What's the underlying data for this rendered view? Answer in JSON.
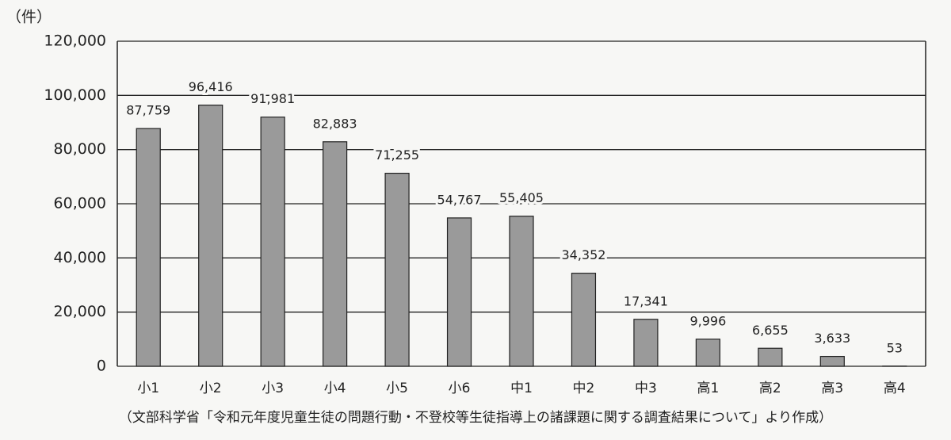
{
  "chart_data": {
    "type": "bar",
    "unit_label": "（件）",
    "source": "（文部科学省「令和元年度児童生徒の問題行動・不登校等生徒指導上の諸課題に関する調査結果について」より作成）",
    "categories": [
      "小1",
      "小2",
      "小3",
      "小4",
      "小5",
      "小6",
      "中1",
      "中2",
      "中3",
      "高1",
      "高2",
      "高3",
      "高4"
    ],
    "values": [
      87759,
      96416,
      91981,
      82883,
      71255,
      54767,
      55405,
      34352,
      17341,
      9996,
      6655,
      3633,
      53
    ],
    "value_labels": [
      "87,759",
      "96,416",
      "91,981",
      "82,883",
      "71,255",
      "54,767",
      "55,405",
      "34,352",
      "17,341",
      "9,996",
      "6,655",
      "3,633",
      "53"
    ],
    "color": "#9a9a9a",
    "ylim": [
      0,
      120000
    ],
    "yticks": [
      0,
      {
        "value": 20000,
        "label": "20,000"
      },
      {
        "value": 40000,
        "label": "40,000"
      },
      {
        "value": 60000,
        "label": "60,000"
      },
      {
        "value": 80000,
        "label": "80,000"
      },
      {
        "value": 100000,
        "label": "100,000"
      },
      {
        "value": 120000,
        "label": "120,000"
      }
    ],
    "grid": true
  }
}
